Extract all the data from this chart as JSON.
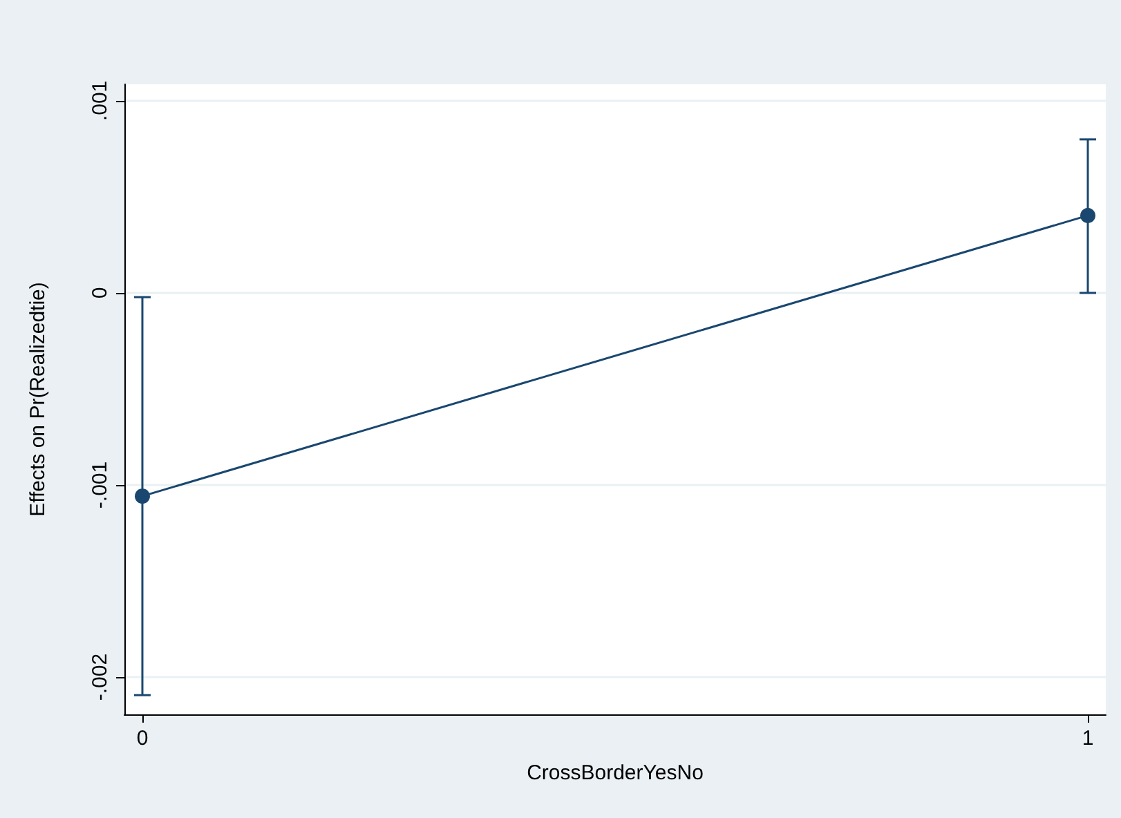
{
  "chart_data": {
    "type": "line",
    "xlabel": "CrossBorderYesNo",
    "ylabel": "Effects on Pr(Realizedtie)",
    "x": [
      0,
      1
    ],
    "series": [
      {
        "color": "#1a476f",
        "values": [
          -0.001058,
          0.000403
        ],
        "errors": [
          [
            -0.002094,
            -2.2e-05
          ],
          [
            0.0,
            0.000799
          ]
        ]
      }
    ],
    "xlim": [
      -0.019,
      1.019
    ],
    "xticks": [
      0,
      1
    ],
    "ylim": [
      -0.002194,
      0.001086
    ],
    "yticks": [
      {
        "value": -0.002,
        "label": "-.002"
      },
      {
        "value": -0.001,
        "label": "-.001"
      },
      0,
      {
        "value": 0.001,
        "label": ".001"
      }
    ],
    "grid": "y",
    "marker": "circle",
    "line_style": "solid"
  }
}
